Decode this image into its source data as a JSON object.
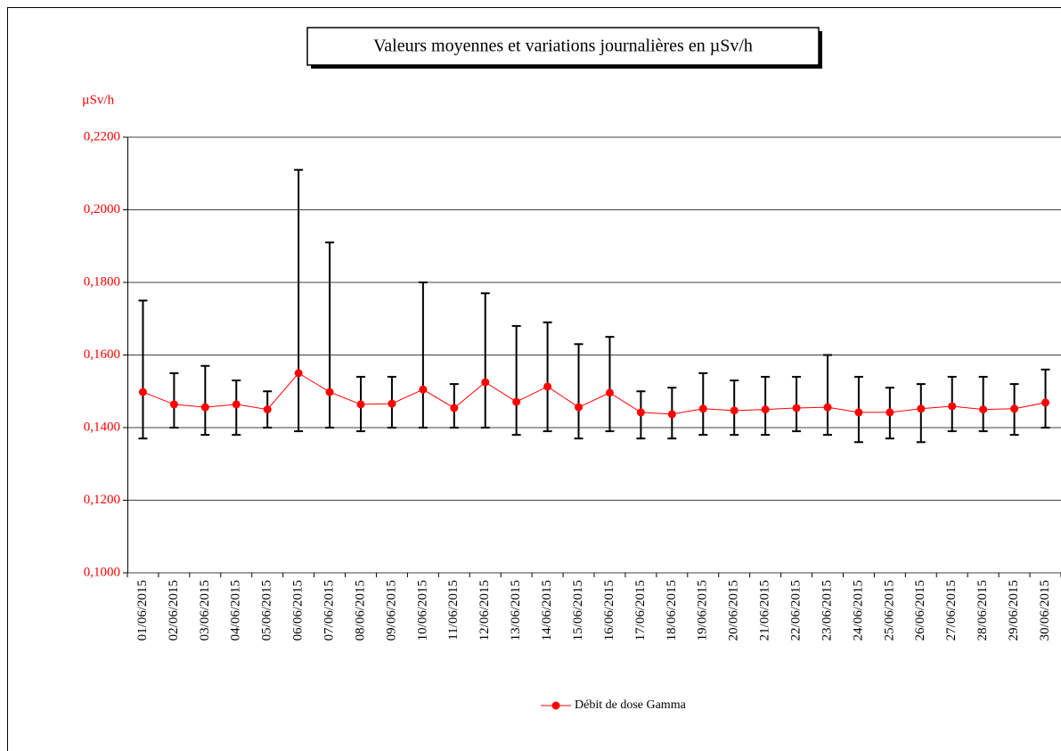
{
  "chart_data": {
    "type": "line-errorbar",
    "title": "Valeurs moyennes et variations journalières en µSv/h",
    "y_label": "µSv/h",
    "categories": [
      "01/06/2015",
      "02/06/2015",
      "03/06/2015",
      "04/06/2015",
      "05/06/2015",
      "06/06/2015",
      "07/06/2015",
      "08/06/2015",
      "09/06/2015",
      "10/06/2015",
      "11/06/2015",
      "12/06/2015",
      "13/06/2015",
      "14/06/2015",
      "15/06/2015",
      "16/06/2015",
      "17/06/2015",
      "18/06/2015",
      "19/06/2015",
      "20/06/2015",
      "21/06/2015",
      "22/06/2015",
      "23/06/2015",
      "24/06/2015",
      "25/06/2015",
      "26/06/2015",
      "27/06/2015",
      "28/06/2015",
      "29/06/2015",
      "30/06/2015"
    ],
    "series": [
      {
        "name": "Débit de dose Gamma",
        "color": "#ff0000",
        "values": [
          0.1498,
          0.1464,
          0.1456,
          0.1464,
          0.145,
          0.155,
          0.1498,
          0.1464,
          0.1466,
          0.1505,
          0.1454,
          0.1525,
          0.1471,
          0.1513,
          0.1456,
          0.1496,
          0.1442,
          0.1437,
          0.1452,
          0.1447,
          0.145,
          0.1454,
          0.1456,
          0.1442,
          0.1442,
          0.1452,
          0.1459,
          0.145,
          0.1452,
          0.1469
        ],
        "max": [
          0.175,
          0.155,
          0.157,
          0.153,
          0.15,
          0.211,
          0.191,
          0.154,
          0.154,
          0.18,
          0.152,
          0.177,
          0.168,
          0.169,
          0.163,
          0.165,
          0.15,
          0.151,
          0.155,
          0.153,
          0.154,
          0.154,
          0.16,
          0.154,
          0.151,
          0.152,
          0.154,
          0.154,
          0.152,
          0.156
        ],
        "min": [
          0.137,
          0.14,
          0.138,
          0.138,
          0.14,
          0.139,
          0.14,
          0.139,
          0.14,
          0.14,
          0.14,
          0.14,
          0.138,
          0.139,
          0.137,
          0.139,
          0.137,
          0.137,
          0.138,
          0.138,
          0.138,
          0.139,
          0.138,
          0.136,
          0.137,
          0.136,
          0.139,
          0.139,
          0.138,
          0.14
        ]
      }
    ],
    "ylim": [
      0.1,
      0.22
    ],
    "yticks": [
      {
        "value": 0.1,
        "label": "0,1000"
      },
      {
        "value": 0.12,
        "label": "0,1200"
      },
      {
        "value": 0.14,
        "label": "0,1400"
      },
      {
        "value": 0.16,
        "label": "0,1600"
      },
      {
        "value": 0.18,
        "label": "0,1800"
      },
      {
        "value": 0.2,
        "label": "0,2000"
      },
      {
        "value": 0.22,
        "label": "0,2200"
      }
    ],
    "grid": true,
    "legend": "bottom"
  }
}
